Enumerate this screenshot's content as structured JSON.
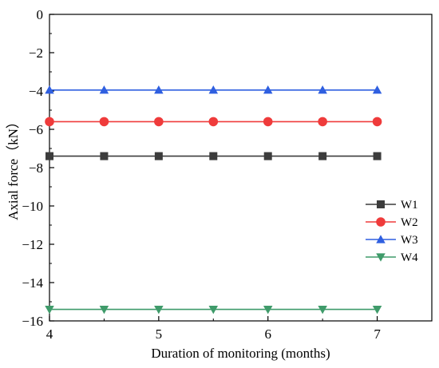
{
  "chart_data": {
    "type": "line",
    "xlabel": "Duration of monitoring (months)",
    "ylabel": "Axial force（kN）",
    "xlim": [
      4,
      7.5
    ],
    "ylim": [
      -16,
      0
    ],
    "xticks": [
      4,
      5,
      6,
      7
    ],
    "xtick_labels": [
      "4",
      "5",
      "6",
      "7"
    ],
    "yticks": [
      0,
      -2,
      -4,
      -6,
      -8,
      -10,
      -12,
      -14,
      -16
    ],
    "ytick_labels": [
      "0",
      "−2",
      "−4",
      "−6",
      "−8",
      "−10",
      "−12",
      "−14",
      "−16"
    ],
    "grid": false,
    "legend_position": "right",
    "x": [
      4,
      4.5,
      5,
      5.5,
      6,
      6.5,
      7
    ],
    "series": [
      {
        "name": "W1",
        "values": [
          -7.4,
          -7.4,
          -7.4,
          -7.4,
          -7.4,
          -7.4,
          -7.4
        ],
        "color": "#3c3c3c",
        "marker": "square"
      },
      {
        "name": "W2",
        "values": [
          -5.6,
          -5.6,
          -5.6,
          -5.6,
          -5.6,
          -5.6,
          -5.6
        ],
        "color": "#ef3b3b",
        "marker": "circle"
      },
      {
        "name": "W3",
        "values": [
          -3.95,
          -3.95,
          -3.95,
          -3.95,
          -3.95,
          -3.95,
          -3.95
        ],
        "color": "#2f5fe0",
        "marker": "triangle-up"
      },
      {
        "name": "W4",
        "values": [
          -15.4,
          -15.4,
          -15.4,
          -15.4,
          -15.4,
          -15.4,
          -15.4
        ],
        "color": "#3f9b6a",
        "marker": "triangle-down"
      }
    ]
  }
}
